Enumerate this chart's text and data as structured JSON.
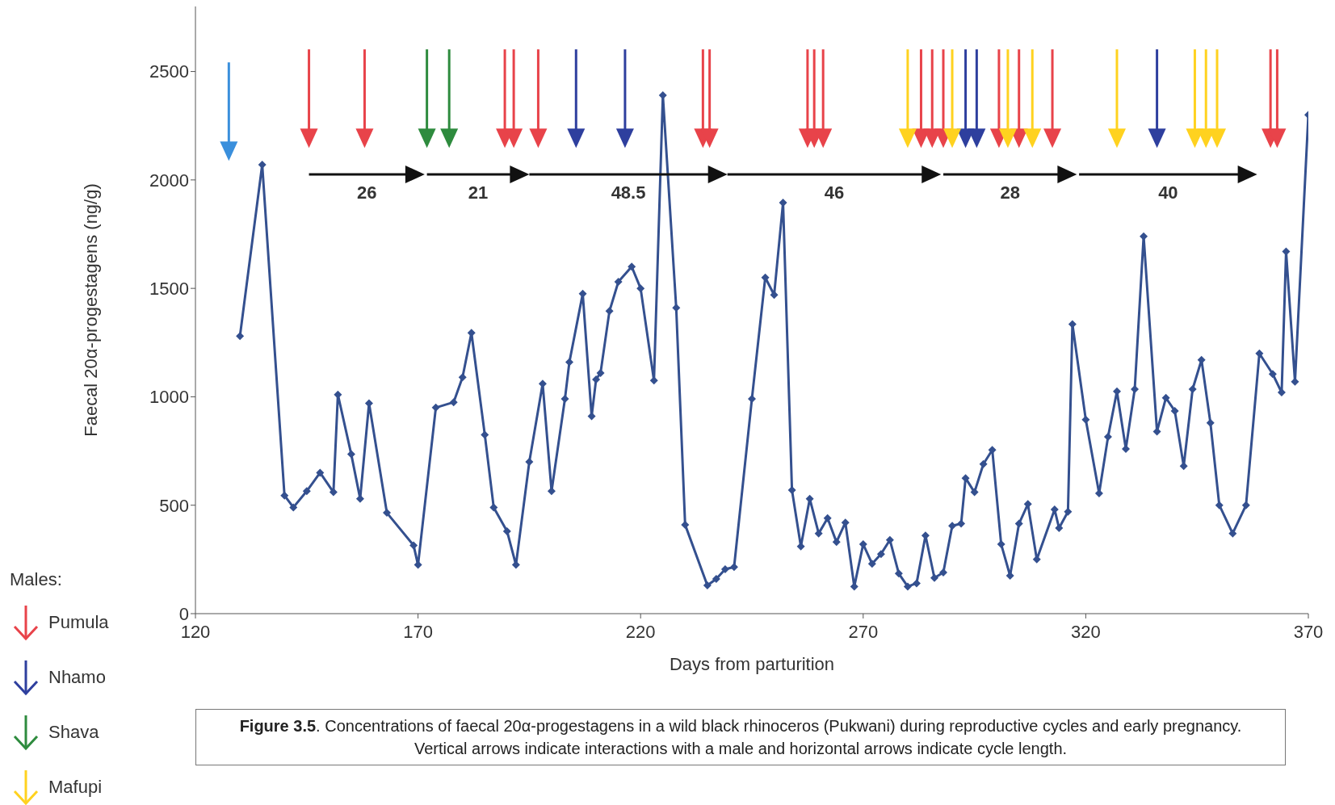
{
  "chart_data": {
    "type": "line",
    "xlabel": "Days from parturition",
    "ylabel": "Faecal 20α-progestagens  (ng/g)",
    "legend_title": "Males:",
    "legend": "bottom left",
    "marker": "diamond",
    "grid": false,
    "xlim": [
      120,
      370
    ],
    "xticks": [
      120,
      170,
      220,
      270,
      320,
      370
    ],
    "ylim": [
      0,
      2800
    ],
    "yticks": [
      0,
      500,
      1000,
      1500,
      2000,
      2500
    ],
    "series": [
      {
        "color": "#34508f",
        "x": [
          130,
          135,
          140,
          142,
          145,
          148,
          151,
          152,
          155,
          157,
          159,
          163,
          169,
          170,
          174,
          178,
          180,
          182,
          185,
          187,
          190,
          192,
          195,
          198,
          200,
          203,
          204,
          207,
          209,
          210,
          211,
          213,
          215,
          218,
          220,
          223,
          225,
          228,
          230,
          235,
          237,
          239,
          241,
          245,
          248,
          250,
          252,
          254,
          256,
          258,
          260,
          262,
          264,
          266,
          268,
          270,
          272,
          274,
          276,
          278,
          280,
          282,
          284,
          286,
          288,
          290,
          292,
          293,
          295,
          297,
          299,
          301,
          303,
          305,
          307,
          309,
          313,
          314,
          316,
          317,
          320,
          323,
          325,
          327,
          329,
          331,
          333,
          336,
          338,
          340,
          342,
          344,
          346,
          348,
          350,
          353,
          356,
          359,
          362,
          364,
          365,
          367,
          370
        ],
        "values": [
          1280,
          2070,
          545,
          490,
          565,
          650,
          560,
          1010,
          735,
          530,
          970,
          465,
          315,
          225,
          950,
          975,
          1090,
          1295,
          825,
          490,
          380,
          225,
          700,
          1060,
          565,
          990,
          1160,
          1475,
          910,
          1080,
          1110,
          1395,
          1530,
          1600,
          1500,
          1075,
          2390,
          1410,
          410,
          130,
          160,
          205,
          215,
          990,
          1550,
          1470,
          1895,
          570,
          310,
          530,
          370,
          440,
          330,
          420,
          125,
          320,
          230,
          275,
          340,
          185,
          125,
          140,
          360,
          165,
          190,
          405,
          415,
          625,
          560,
          690,
          755,
          320,
          175,
          415,
          505,
          250,
          480,
          395,
          470,
          1335,
          895,
          555,
          815,
          1025,
          760,
          1035,
          1740,
          840,
          995,
          935,
          680,
          1035,
          1170,
          880,
          500,
          370,
          500,
          1200,
          1105,
          1020,
          1670,
          1070,
          2300
        ]
      },
      {
        "type": "scatter",
        "marker": "triangle",
        "color": "#3a8fdc",
        "x": [
          127.5
        ],
        "values": [
          2140
        ]
      },
      {
        "type": "scatter",
        "marker": "triangle",
        "name": "Pumula",
        "color": "#e8434a",
        "x": [
          145.5,
          158,
          189.5,
          191.5,
          197,
          234,
          235.5,
          257.5,
          259,
          261,
          283,
          285.5,
          288,
          300.5,
          305,
          312.5,
          361.5,
          363
        ],
        "values": [
          2200,
          2200,
          2200,
          2200,
          2200,
          2200,
          2200,
          2200,
          2200,
          2200,
          2200,
          2200,
          2200,
          2200,
          2200,
          2200,
          2200,
          2200
        ]
      },
      {
        "type": "scatter",
        "marker": "triangle",
        "name": "Nhamo",
        "color": "#2e3f9e",
        "x": [
          205.5,
          216.5,
          293,
          295.5,
          336
        ],
        "values": [
          2200,
          2200,
          2200,
          2200,
          2200
        ]
      },
      {
        "type": "scatter",
        "marker": "triangle",
        "name": "Shava",
        "color": "#2e8b3e",
        "x": [
          172,
          177
        ],
        "values": [
          2200,
          2200
        ]
      },
      {
        "type": "scatter",
        "marker": "triangle",
        "name": "Mafupi",
        "color": "#ffd21f",
        "x": [
          280,
          290,
          302.5,
          308,
          327,
          344.5,
          347,
          349.5
        ],
        "values": [
          2200,
          2200,
          2200,
          2200,
          2200,
          2200,
          2200,
          2200
        ]
      }
    ],
    "annotations": [
      "26",
      "21",
      "48.5",
      "46",
      "28",
      "40",
      "Figure 3.5. Concentrations of faecal 20α-progestagens in a wild black rhinoceros (Pukwani) during reproductive cycles and early pregnancy.\nVertical arrows indicate interactions with a male and horizontal arrows indicate cycle length."
    ]
  }
}
